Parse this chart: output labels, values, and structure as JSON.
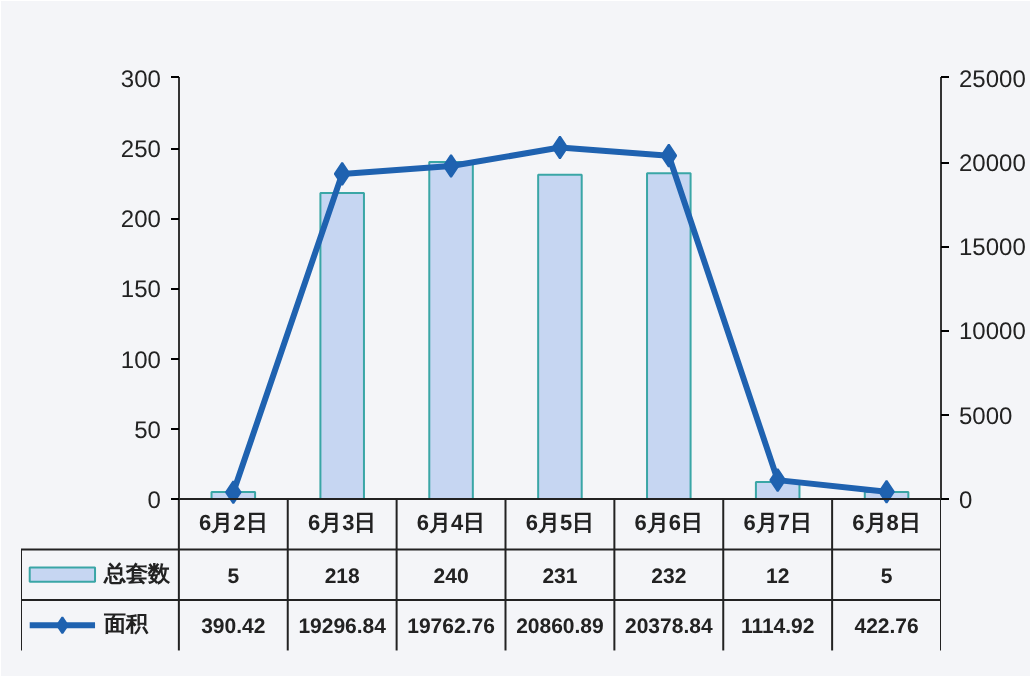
{
  "chart_data": {
    "type": "bar",
    "categories": [
      "6月2日",
      "6月3日",
      "6月4日",
      "6月5日",
      "6月6日",
      "6月7日",
      "6月8日"
    ],
    "series": [
      {
        "name": "总套数",
        "color": "#c6d6f2",
        "values": [
          5,
          218,
          240,
          231,
          232,
          12,
          5
        ]
      },
      {
        "name": "面积",
        "type": "line",
        "axis": "y2",
        "color": "#1f62b0",
        "values": [
          390.42,
          19296.84,
          19762.76,
          20860.89,
          20378.84,
          1114.92,
          422.76
        ]
      }
    ],
    "ylim": [
      0,
      300
    ],
    "yticks": [
      0,
      50,
      100,
      150,
      200,
      250,
      300
    ],
    "y2lim": [
      0,
      25000
    ],
    "y2ticks": [
      0,
      5000,
      10000,
      15000,
      20000,
      25000
    ],
    "marker": "diamond",
    "data_labels": true,
    "grid": false,
    "legend": "bottom"
  }
}
